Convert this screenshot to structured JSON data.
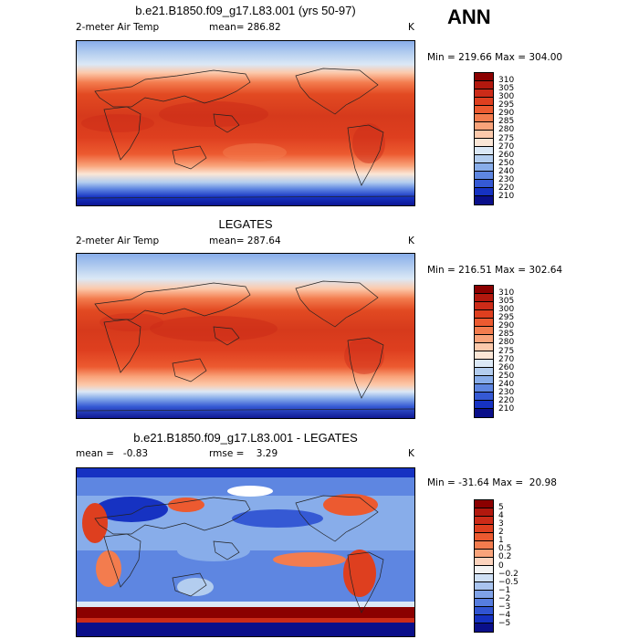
{
  "season_label": "ANN",
  "panels": [
    {
      "title": "b.e21.B1850.f09_g17.L83.001 (yrs 50-97)",
      "left_label": "2-meter Air Temp",
      "center_label": "mean= 286.82",
      "units": "K",
      "minmax": "Min = 219.66 Max = 304.00",
      "colorbar_labels": [
        "310",
        "305",
        "300",
        "295",
        "290",
        "285",
        "280",
        "275",
        "270",
        "260",
        "250",
        "240",
        "230",
        "220",
        "210"
      ],
      "colorbar_colors": [
        "#8b0000",
        "#b2180e",
        "#cc2b18",
        "#de3f1f",
        "#ec5a30",
        "#f37c4e",
        "#f9a37a",
        "#fcc9ab",
        "#fbe6d6",
        "#dbe8f6",
        "#b3cdef",
        "#88adea",
        "#5e86e1",
        "#3559d4",
        "#1632c2",
        "#0a0f8a"
      ]
    },
    {
      "title": "LEGATES",
      "left_label": "2-meter Air Temp",
      "center_label": "mean= 287.64",
      "units": "K",
      "minmax": "Min = 216.51 Max = 302.64",
      "colorbar_labels": [
        "310",
        "305",
        "300",
        "295",
        "290",
        "285",
        "280",
        "275",
        "270",
        "260",
        "250",
        "240",
        "230",
        "220",
        "210"
      ],
      "colorbar_colors": [
        "#8b0000",
        "#b2180e",
        "#cc2b18",
        "#de3f1f",
        "#ec5a30",
        "#f37c4e",
        "#f9a37a",
        "#fcc9ab",
        "#fbe6d6",
        "#dbe8f6",
        "#b3cdef",
        "#88adea",
        "#5e86e1",
        "#3559d4",
        "#1632c2",
        "#0a0f8a"
      ]
    },
    {
      "title": "b.e21.B1850.f09_g17.L83.001 - LEGATES",
      "left_label": "mean =   -0.83",
      "center_label": "rmse =    3.29",
      "units": "K",
      "minmax": "Min = -31.64 Max =  20.98",
      "colorbar_labels": [
        "5",
        "4",
        "3",
        "2",
        "1",
        "0.5",
        "0.2",
        "0",
        "−0.2",
        "−0.5",
        "−1",
        "−2",
        "−3",
        "−4",
        "−5"
      ],
      "colorbar_colors": [
        "#8b0000",
        "#b2180e",
        "#cc2b18",
        "#de3f1f",
        "#ec5a30",
        "#f37c4e",
        "#f9a37a",
        "#fcd3bd",
        "#f3f3f3",
        "#cfe0f5",
        "#a9c4ef",
        "#7fa2e8",
        "#567ddf",
        "#3054d2",
        "#1531c1",
        "#0a0f8a"
      ]
    }
  ]
}
